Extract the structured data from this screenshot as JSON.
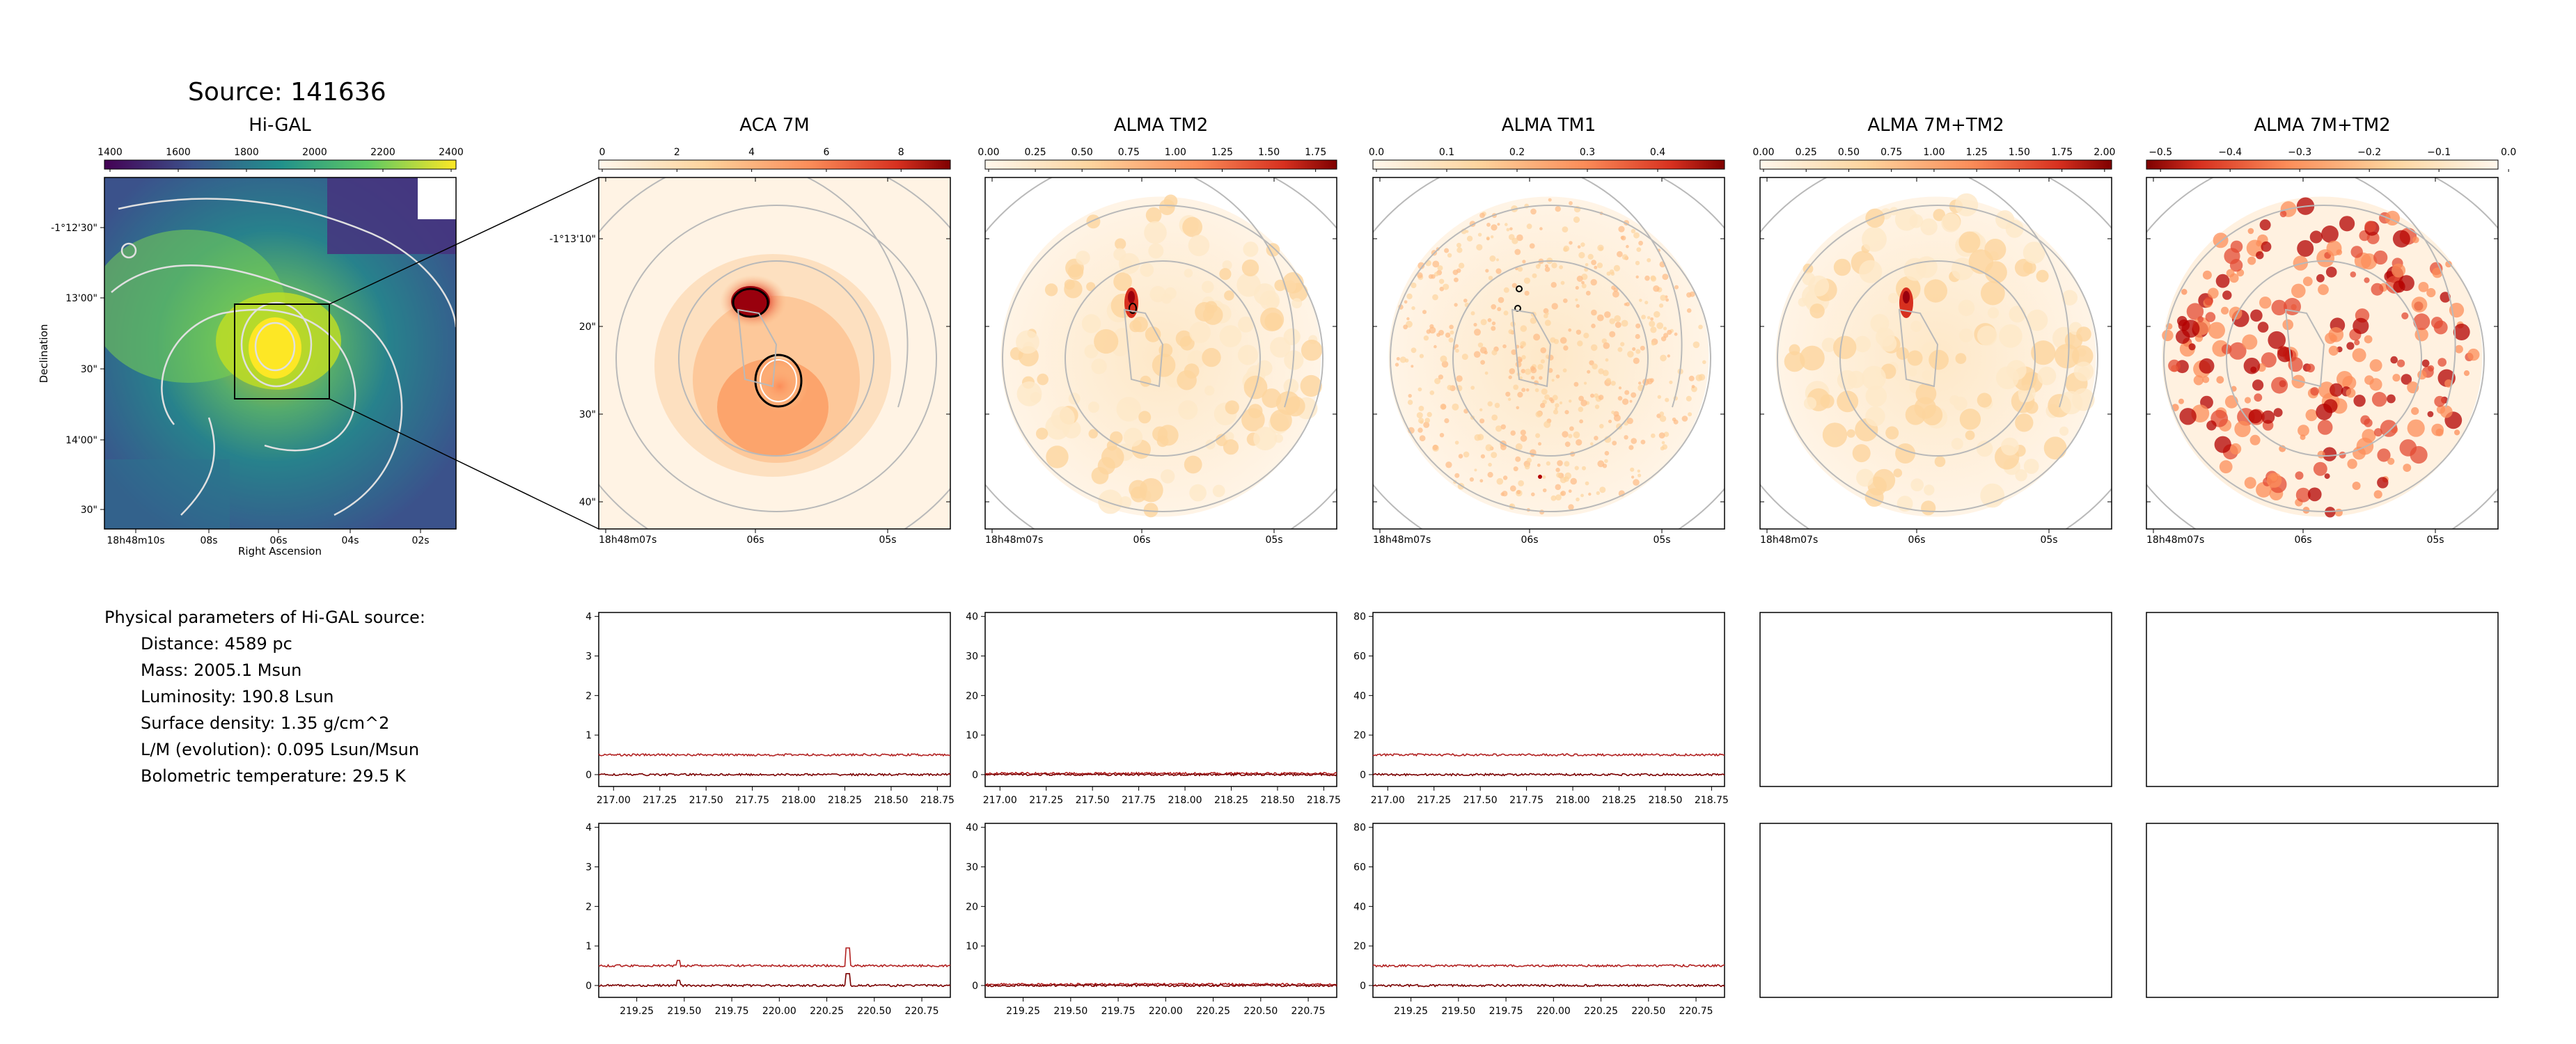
{
  "source_title": "Source: 141636",
  "hig": {
    "title": "Hi-GAL",
    "colorbar_ticks": [
      "1400",
      "1600",
      "1800",
      "2000",
      "2200",
      "2400"
    ],
    "xticks": [
      "18h48m10s",
      "08s",
      "06s",
      "04s",
      "02s"
    ],
    "yticks": [
      "-1°12'30\"",
      "13'00\"",
      "30\"",
      "14'00\"",
      "30\""
    ],
    "xlabel": "Right Ascension",
    "ylabel": "Declination"
  },
  "panels": [
    {
      "title": "ACA 7M",
      "cbar": [
        "0",
        "2",
        "4",
        "6",
        "8"
      ]
    },
    {
      "title": "ALMA TM2",
      "cbar": [
        "0.00",
        "0.25",
        "0.50",
        "0.75",
        "1.00",
        "1.25",
        "1.50",
        "1.75"
      ]
    },
    {
      "title": "ALMA TM1",
      "cbar": [
        "0.0",
        "0.1",
        "0.2",
        "0.3",
        "0.4"
      ]
    },
    {
      "title": "ALMA 7M+TM2",
      "cbar": [
        "0.00",
        "0.25",
        "0.50",
        "0.75",
        "1.00",
        "1.25",
        "1.50",
        "1.75",
        "2.00"
      ]
    },
    {
      "title": "ALMA 7M+TM2",
      "cbar": [
        "−0.5",
        "−0.4",
        "−0.3",
        "−0.2",
        "−0.1",
        "0.0"
      ]
    }
  ],
  "zoom_yticks": [
    "-1°13'10\"",
    "20\"",
    "30\"",
    "40\""
  ],
  "zoom_xticks": [
    "18h48m07s",
    "06s",
    "05s"
  ],
  "params": {
    "heading": "Physical parameters of Hi-GAL source:",
    "lines": [
      "Distance: 4589 pc",
      "Mass: 2005.1 Msun",
      "Luminosity: 190.8 Lsun",
      "Surface density: 1.35 g/cm^2",
      "L/M (evolution): 0.095 Lsun/Msun",
      "Bolometric temperature: 29.5 K"
    ]
  },
  "chart_data": [
    {
      "type": "line",
      "panel": "ACA 7M spectrum (row 1)",
      "x_range": [
        216.92,
        218.82
      ],
      "ylim": [
        -0.3,
        4.1
      ],
      "yticks": [
        "0",
        "1",
        "2",
        "3",
        "4"
      ],
      "xticks": [
        "217.00",
        "217.25",
        "217.50",
        "217.75",
        "218.00",
        "218.25",
        "218.50",
        "218.75"
      ],
      "series": [
        {
          "level": 0.5
        },
        {
          "level": 0.0
        }
      ]
    },
    {
      "type": "line",
      "panel": "ALMA TM2 spectrum (row 1)",
      "x_range": [
        216.92,
        218.82
      ],
      "ylim": [
        -3,
        41
      ],
      "yticks": [
        "0",
        "10",
        "20",
        "30",
        "40"
      ],
      "xticks": [
        "217.00",
        "217.25",
        "217.50",
        "217.75",
        "218.00",
        "218.25",
        "218.50",
        "218.75"
      ],
      "series": [
        {
          "level": 0.3
        },
        {
          "level": 0.0
        }
      ]
    },
    {
      "type": "line",
      "panel": "ALMA TM1 spectrum (row 1)",
      "x_range": [
        216.92,
        218.82
      ],
      "ylim": [
        -6,
        82
      ],
      "yticks": [
        "0",
        "20",
        "40",
        "60",
        "80"
      ],
      "xticks": [
        "217.00",
        "217.25",
        "217.50",
        "217.75",
        "218.00",
        "218.25",
        "218.50",
        "218.75"
      ],
      "series": [
        {
          "level": 10
        },
        {
          "level": 0
        }
      ]
    },
    {
      "type": "line",
      "panel": "ACA 7M spectrum (row 2)",
      "x_range": [
        219.05,
        220.9
      ],
      "ylim": [
        -0.3,
        4.1
      ],
      "yticks": [
        "0",
        "1",
        "2",
        "3",
        "4"
      ],
      "xticks": [
        "219.25",
        "219.50",
        "219.75",
        "220.00",
        "220.25",
        "220.50",
        "220.75"
      ],
      "series": [
        {
          "level": 0.5,
          "peak": {
            "x": 220.36,
            "y": 0.95
          }
        },
        {
          "level": 0.0,
          "peak": {
            "x": 220.36,
            "y": 0.3
          }
        }
      ]
    },
    {
      "type": "line",
      "panel": "ALMA TM2 spectrum (row 2)",
      "x_range": [
        219.05,
        220.9
      ],
      "ylim": [
        -3,
        41
      ],
      "yticks": [
        "0",
        "10",
        "20",
        "30",
        "40"
      ],
      "xticks": [
        "219.25",
        "219.50",
        "219.75",
        "220.00",
        "220.25",
        "220.50",
        "220.75"
      ],
      "series": [
        {
          "level": 0.3
        },
        {
          "level": 0.0
        }
      ]
    },
    {
      "type": "line",
      "panel": "ALMA TM1 spectrum (row 2)",
      "x_range": [
        219.05,
        220.9
      ],
      "ylim": [
        -6,
        82
      ],
      "yticks": [
        "0",
        "20",
        "40",
        "60",
        "80"
      ],
      "xticks": [
        "219.25",
        "219.50",
        "219.75",
        "220.00",
        "220.25",
        "220.50",
        "220.75"
      ],
      "series": [
        {
          "level": 10
        },
        {
          "level": 0
        }
      ]
    }
  ]
}
